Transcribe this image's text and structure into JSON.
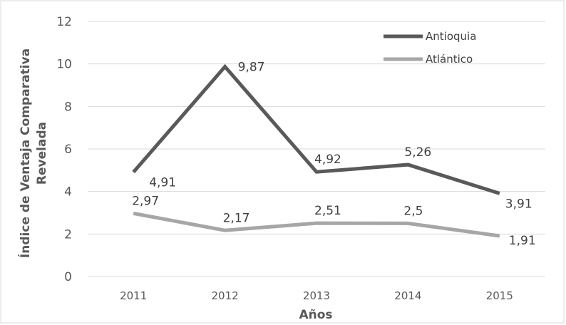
{
  "chart_data": {
    "type": "line",
    "categories": [
      "2011",
      "2012",
      "2013",
      "2014",
      "2015"
    ],
    "series": [
      {
        "name": "Antioquia",
        "values": [
          4.91,
          9.87,
          4.92,
          5.26,
          3.91
        ],
        "labels": [
          "4,91",
          "9,87",
          "4,92",
          "5,26",
          "3,91"
        ],
        "color": "#595959"
      },
      {
        "name": "Atlántico",
        "values": [
          2.97,
          2.17,
          2.51,
          2.5,
          1.91
        ],
        "labels": [
          "2,97",
          "2,17",
          "2,51",
          "2,5",
          "1,91"
        ],
        "color": "#a6a6a6"
      }
    ],
    "xlabel": "Años",
    "ylabel_line1": "Índice de Ventaja Comparativa",
    "ylabel_line2": "Revelada",
    "ylim": [
      0,
      12
    ],
    "yticks": [
      "0",
      "2",
      "4",
      "6",
      "8",
      "10",
      "12"
    ],
    "grid": true,
    "legend_position": "top-right"
  }
}
